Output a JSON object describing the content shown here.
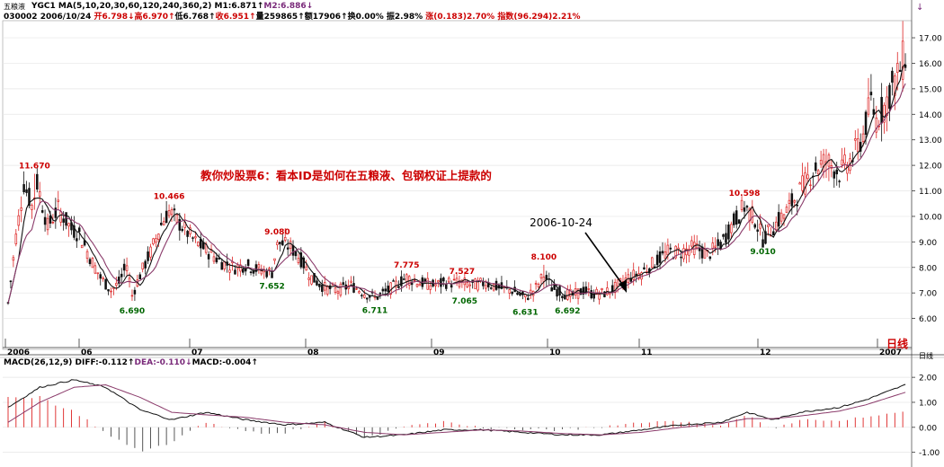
{
  "header": {
    "name": "五粮液",
    "row1": [
      {
        "t": "YGC1 MA(5,10,20,30,60,120,240,360,2) M1:6.871↑",
        "c": "blk"
      },
      {
        "t": "M2:6.886↓",
        "c": "pur"
      }
    ],
    "row2": [
      {
        "t": "030002 2006/10/24 ",
        "c": "blk"
      },
      {
        "t": "开6.798↓",
        "c": "red"
      },
      {
        "t": "高6.970↑",
        "c": "red"
      },
      {
        "t": "低6.768↑",
        "c": "blk"
      },
      {
        "t": "收6.951↑",
        "c": "red"
      },
      {
        "t": "量259865↑",
        "c": "blk"
      },
      {
        "t": "额17906↑",
        "c": "blk"
      },
      {
        "t": "换0.00% ",
        "c": "blk"
      },
      {
        "t": "振2.98% ",
        "c": "blk"
      },
      {
        "t": "涨(0.183)2.70% ",
        "c": "red"
      },
      {
        "t": "指数(96.294)2.21%",
        "c": "red"
      }
    ],
    "arrow_label": "↓"
  },
  "overlay": {
    "title": "教你炒股票6：看本ID是如何在五粮液、包钢权证上提款的",
    "date_callout": "2006-10-24",
    "period_label": "日线"
  },
  "macd_header": [
    {
      "t": "MACD(26,12,9) DIFF:-0.112↑",
      "c": "blk"
    },
    {
      "t": "DEA:-0.110↓",
      "c": "pur"
    },
    {
      "t": "MACD:-0.004↑",
      "c": "blk"
    }
  ],
  "colors": {
    "up": "#dd2222",
    "down": "#111111",
    "ma1": "#111111",
    "ma2": "#8a3a6a",
    "annot_high": "#cc0000",
    "annot_low": "#006600",
    "grid": "#e6e6e6",
    "callout": "#cc0000"
  },
  "chart_data": {
    "type": "candlestick",
    "ylim": [
      5.0,
      17.6
    ],
    "y_ticks": [
      "17.00",
      "16.00",
      "15.00",
      "14.00",
      "13.00",
      "12.00",
      "11.00",
      "10.00",
      "9.00",
      "8.00",
      "7.00",
      "6.00"
    ],
    "x_labels": [
      "2006",
      "06",
      "07",
      "08",
      "09",
      "10",
      "11",
      "12",
      "2007"
    ],
    "annotations": [
      {
        "label": "11.670",
        "kind": "high",
        "seq": 10,
        "value": 11.67
      },
      {
        "label": "10.466",
        "kind": "high",
        "seq": 61,
        "value": 10.47
      },
      {
        "label": "9.080",
        "kind": "high",
        "seq": 102,
        "value": 9.08
      },
      {
        "label": "7.652",
        "kind": "low",
        "seq": 100,
        "value": 7.65
      },
      {
        "label": "6.690",
        "kind": "low",
        "seq": 47,
        "value": 6.69
      },
      {
        "label": "6.711",
        "kind": "low",
        "seq": 139,
        "value": 6.71
      },
      {
        "label": "7.775",
        "kind": "high",
        "seq": 151,
        "value": 7.78
      },
      {
        "label": "7.527",
        "kind": "high",
        "seq": 172,
        "value": 7.53
      },
      {
        "label": "7.065",
        "kind": "low",
        "seq": 173,
        "value": 7.07
      },
      {
        "label": "6.631",
        "kind": "low",
        "seq": 196,
        "value": 6.63
      },
      {
        "label": "8.100",
        "kind": "high",
        "seq": 203,
        "value": 8.1
      },
      {
        "label": "6.692",
        "kind": "low",
        "seq": 212,
        "value": 6.69
      },
      {
        "label": "10.598",
        "kind": "high",
        "seq": 279,
        "value": 10.6
      },
      {
        "label": "9.010",
        "kind": "low",
        "seq": 286,
        "value": 9.01
      }
    ],
    "price_anchors": [
      [
        0,
        6.6
      ],
      [
        3,
        9.2
      ],
      [
        6,
        11.3
      ],
      [
        9,
        10.4
      ],
      [
        11,
        11.3
      ],
      [
        15,
        9.6
      ],
      [
        19,
        10.3
      ],
      [
        24,
        9.5
      ],
      [
        27,
        9.3
      ],
      [
        31,
        8.4
      ],
      [
        35,
        7.6
      ],
      [
        39,
        7.1
      ],
      [
        42,
        7.4
      ],
      [
        45,
        8.1
      ],
      [
        47,
        6.9
      ],
      [
        50,
        7.7
      ],
      [
        54,
        8.6
      ],
      [
        58,
        9.7
      ],
      [
        61,
        10.2
      ],
      [
        66,
        9.6
      ],
      [
        71,
        9.0
      ],
      [
        76,
        8.6
      ],
      [
        81,
        8.2
      ],
      [
        86,
        8.0
      ],
      [
        90,
        8.1
      ],
      [
        95,
        7.9
      ],
      [
        100,
        7.8
      ],
      [
        102,
        9.0
      ],
      [
        107,
        8.8
      ],
      [
        111,
        8.3
      ],
      [
        115,
        7.6
      ],
      [
        120,
        7.2
      ],
      [
        125,
        7.1
      ],
      [
        130,
        7.3
      ],
      [
        135,
        7.0
      ],
      [
        139,
        6.8
      ],
      [
        144,
        7.1
      ],
      [
        148,
        7.4
      ],
      [
        151,
        7.6
      ],
      [
        156,
        7.4
      ],
      [
        161,
        7.3
      ],
      [
        166,
        7.4
      ],
      [
        172,
        7.4
      ],
      [
        176,
        7.3
      ],
      [
        181,
        7.4
      ],
      [
        186,
        7.2
      ],
      [
        191,
        7.1
      ],
      [
        196,
        6.8
      ],
      [
        200,
        7.2
      ],
      [
        203,
        7.7
      ],
      [
        206,
        7.2
      ],
      [
        210,
        7.0
      ],
      [
        214,
        6.9
      ],
      [
        218,
        7.1
      ],
      [
        222,
        6.95
      ],
      [
        226,
        7.0
      ],
      [
        230,
        7.2
      ],
      [
        235,
        7.6
      ],
      [
        240,
        7.8
      ],
      [
        245,
        8.2
      ],
      [
        250,
        8.6
      ],
      [
        255,
        8.6
      ],
      [
        260,
        8.8
      ],
      [
        265,
        8.5
      ],
      [
        270,
        8.9
      ],
      [
        275,
        9.8
      ],
      [
        279,
        10.4
      ],
      [
        283,
        9.9
      ],
      [
        286,
        9.1
      ],
      [
        290,
        9.6
      ],
      [
        295,
        10.2
      ],
      [
        300,
        11.0
      ],
      [
        305,
        11.8
      ],
      [
        310,
        12.2
      ],
      [
        315,
        11.7
      ],
      [
        320,
        12.3
      ],
      [
        324,
        13.2
      ],
      [
        327,
        14.5
      ],
      [
        329,
        13.8
      ],
      [
        332,
        14.3
      ],
      [
        335,
        15.1
      ],
      [
        337,
        15.5
      ],
      [
        340,
        16.4
      ]
    ],
    "macd_ylim": [
      -1.3,
      2.4
    ],
    "macd_ticks": [
      "2.00",
      "1.00",
      "0.00",
      "-1.00"
    ],
    "diff_anchors": [
      [
        0,
        0.8
      ],
      [
        12,
        1.6
      ],
      [
        25,
        1.9
      ],
      [
        37,
        1.6
      ],
      [
        50,
        0.7
      ],
      [
        62,
        0.3
      ],
      [
        75,
        0.6
      ],
      [
        90,
        0.3
      ],
      [
        105,
        0.1
      ],
      [
        120,
        0.2
      ],
      [
        135,
        -0.4
      ],
      [
        150,
        -0.3
      ],
      [
        165,
        -0.1
      ],
      [
        180,
        -0.1
      ],
      [
        195,
        -0.2
      ],
      [
        210,
        -0.3
      ],
      [
        225,
        -0.3
      ],
      [
        240,
        -0.1
      ],
      [
        255,
        0.1
      ],
      [
        270,
        0.2
      ],
      [
        280,
        0.6
      ],
      [
        290,
        0.3
      ],
      [
        300,
        0.6
      ],
      [
        315,
        0.8
      ],
      [
        325,
        1.1
      ],
      [
        340,
        1.7
      ]
    ],
    "dea_anchors": [
      [
        0,
        0.2
      ],
      [
        12,
        1.0
      ],
      [
        25,
        1.6
      ],
      [
        37,
        1.7
      ],
      [
        50,
        1.2
      ],
      [
        62,
        0.6
      ],
      [
        75,
        0.5
      ],
      [
        90,
        0.4
      ],
      [
        105,
        0.2
      ],
      [
        120,
        0.1
      ],
      [
        135,
        -0.2
      ],
      [
        150,
        -0.3
      ],
      [
        165,
        -0.2
      ],
      [
        180,
        -0.1
      ],
      [
        195,
        -0.15
      ],
      [
        210,
        -0.25
      ],
      [
        225,
        -0.3
      ],
      [
        240,
        -0.2
      ],
      [
        255,
        0.0
      ],
      [
        270,
        0.15
      ],
      [
        280,
        0.35
      ],
      [
        290,
        0.35
      ],
      [
        300,
        0.45
      ],
      [
        315,
        0.65
      ],
      [
        325,
        0.9
      ],
      [
        340,
        1.4
      ]
    ]
  }
}
